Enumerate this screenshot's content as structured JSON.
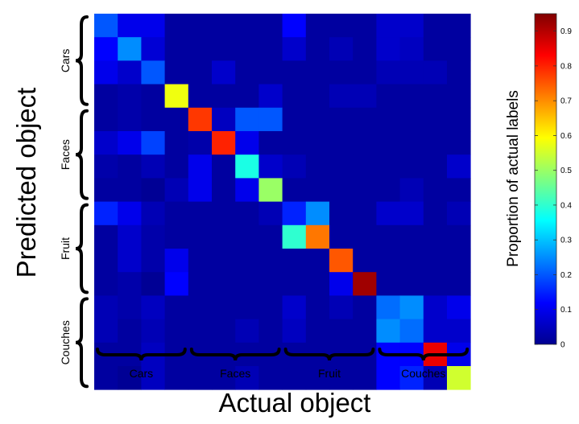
{
  "chart_data": {
    "type": "heatmap",
    "xlabel": "Actual object",
    "ylabel": "Predicted object",
    "x_groups": [
      "Cars",
      "Faces",
      "Fruit",
      "Couches"
    ],
    "y_groups": [
      "Cars",
      "Faces",
      "Fruit",
      "Couches"
    ],
    "colorbar": {
      "label": "Proportion of actual labels",
      "range": [
        0,
        0.95
      ],
      "ticks": [
        "0",
        "0.1",
        "0.2",
        "0.3",
        "0.4",
        "0.5",
        "0.6",
        "0.7",
        "0.8",
        "0.9"
      ],
      "tick_values": [
        0,
        0.1,
        0.2,
        0.3,
        0.4,
        0.5,
        0.6,
        0.7,
        0.8,
        0.9
      ]
    },
    "matrix": [
      [
        0.2,
        0.1,
        0.1,
        0.03,
        0.03,
        0.03,
        0.03,
        0.03,
        0.12,
        0.03,
        0.03,
        0.03,
        0.07,
        0.07,
        0.03,
        0.03
      ],
      [
        0.12,
        0.25,
        0.08,
        0.03,
        0.03,
        0.03,
        0.03,
        0.03,
        0.07,
        0.03,
        0.05,
        0.03,
        0.07,
        0.06,
        0.03,
        0.03
      ],
      [
        0.1,
        0.07,
        0.2,
        0.03,
        0.03,
        0.07,
        0.03,
        0.03,
        0.03,
        0.03,
        0.03,
        0.03,
        0.05,
        0.05,
        0.05,
        0.03
      ],
      [
        0.03,
        0.04,
        0.03,
        0.58,
        0.03,
        0.03,
        0.03,
        0.07,
        0.03,
        0.03,
        0.05,
        0.05,
        0.03,
        0.03,
        0.03,
        0.03
      ],
      [
        0.03,
        0.04,
        0.03,
        0.03,
        0.78,
        0.06,
        0.2,
        0.2,
        0.03,
        0.03,
        0.03,
        0.03,
        0.03,
        0.03,
        0.03,
        0.03
      ],
      [
        0.07,
        0.1,
        0.18,
        0.03,
        0.04,
        0.8,
        0.1,
        0.03,
        0.03,
        0.03,
        0.03,
        0.03,
        0.03,
        0.03,
        0.03,
        0.03
      ],
      [
        0.04,
        0.03,
        0.05,
        0.03,
        0.1,
        0.03,
        0.38,
        0.07,
        0.05,
        0.03,
        0.03,
        0.03,
        0.03,
        0.03,
        0.03,
        0.07
      ],
      [
        0.03,
        0.03,
        0.02,
        0.05,
        0.1,
        0.03,
        0.1,
        0.5,
        0.03,
        0.03,
        0.03,
        0.03,
        0.03,
        0.05,
        0.03,
        0.03
      ],
      [
        0.15,
        0.1,
        0.05,
        0.03,
        0.03,
        0.03,
        0.03,
        0.05,
        0.15,
        0.25,
        0.03,
        0.03,
        0.07,
        0.07,
        0.03,
        0.05
      ],
      [
        0.03,
        0.07,
        0.04,
        0.03,
        0.03,
        0.03,
        0.03,
        0.03,
        0.4,
        0.72,
        0.03,
        0.03,
        0.03,
        0.03,
        0.03,
        0.03
      ],
      [
        0.03,
        0.07,
        0.04,
        0.1,
        0.03,
        0.03,
        0.03,
        0.03,
        0.03,
        0.03,
        0.75,
        0.03,
        0.03,
        0.03,
        0.03,
        0.03
      ],
      [
        0.03,
        0.04,
        0.02,
        0.12,
        0.03,
        0.03,
        0.03,
        0.03,
        0.03,
        0.03,
        0.1,
        0.92,
        0.03,
        0.03,
        0.03,
        0.03
      ],
      [
        0.05,
        0.04,
        0.06,
        0.03,
        0.03,
        0.03,
        0.03,
        0.03,
        0.07,
        0.03,
        0.05,
        0.03,
        0.22,
        0.25,
        0.07,
        0.1
      ],
      [
        0.05,
        0.03,
        0.05,
        0.03,
        0.03,
        0.03,
        0.05,
        0.03,
        0.06,
        0.03,
        0.03,
        0.03,
        0.25,
        0.22,
        0.07,
        0.07
      ],
      [
        0.03,
        0.03,
        0.06,
        0.03,
        0.03,
        0.03,
        0.03,
        0.03,
        0.03,
        0.03,
        0.03,
        0.03,
        0.12,
        0.12,
        0.85,
        0.1
      ],
      [
        0.03,
        0.02,
        0.06,
        0.03,
        0.03,
        0.03,
        0.05,
        0.03,
        0.03,
        0.03,
        0.03,
        0.03,
        0.12,
        0.15,
        0.05,
        0.55
      ]
    ]
  }
}
